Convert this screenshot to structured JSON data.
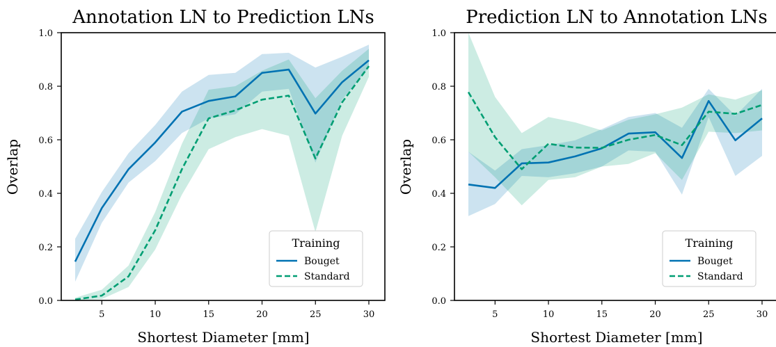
{
  "chart_data": [
    {
      "type": "line",
      "title": "Annotation LN to Prediction LNs",
      "xlabel": "Shortest Diameter [mm]",
      "ylabel": "Overlap",
      "xlim": [
        1.2,
        31.5
      ],
      "ylim": [
        0.0,
        1.0
      ],
      "xticks": [
        5,
        10,
        15,
        20,
        25,
        30
      ],
      "yticks": [
        0.0,
        0.2,
        0.4,
        0.6,
        0.8,
        1.0
      ],
      "x": [
        2.5,
        5,
        7.5,
        10,
        12.5,
        15,
        17.5,
        20,
        22.5,
        25,
        27.5,
        30
      ],
      "series": [
        {
          "name": "Bouget",
          "color": "#0072b2",
          "dash": "solid",
          "values": [
            0.145,
            0.345,
            0.49,
            0.59,
            0.705,
            0.745,
            0.762,
            0.85,
            0.862,
            0.698,
            0.815,
            0.897
          ],
          "band_low": [
            0.07,
            0.29,
            0.44,
            0.52,
            0.625,
            0.68,
            0.695,
            0.78,
            0.79,
            0.515,
            0.75,
            0.87
          ],
          "band_high": [
            0.23,
            0.405,
            0.55,
            0.655,
            0.78,
            0.842,
            0.85,
            0.92,
            0.925,
            0.87,
            0.91,
            0.955
          ]
        },
        {
          "name": "Standard",
          "color": "#009e73",
          "dash": "dashed",
          "values": [
            0.003,
            0.018,
            0.09,
            0.262,
            0.49,
            0.68,
            0.71,
            0.75,
            0.765,
            0.53,
            0.74,
            0.875
          ],
          "band_low": [
            0.0,
            0.005,
            0.05,
            0.19,
            0.395,
            0.565,
            0.61,
            0.64,
            0.615,
            0.255,
            0.615,
            0.835
          ],
          "band_high": [
            0.01,
            0.04,
            0.13,
            0.33,
            0.585,
            0.787,
            0.8,
            0.858,
            0.9,
            0.755,
            0.858,
            0.94
          ]
        }
      ],
      "legend": {
        "title": "Training",
        "position": "lower-right"
      },
      "grid": false
    },
    {
      "type": "line",
      "title": "Prediction LN to Annotation LNs",
      "xlabel": "Shortest Diameter [mm]",
      "ylabel": "Overlap",
      "xlim": [
        1.2,
        31.5
      ],
      "ylim": [
        0.0,
        1.0
      ],
      "xticks": [
        5,
        10,
        15,
        20,
        25,
        30
      ],
      "yticks": [
        0.0,
        0.2,
        0.4,
        0.6,
        0.8,
        1.0
      ],
      "x": [
        2.5,
        5,
        7.5,
        10,
        12.5,
        15,
        17.5,
        20,
        22.5,
        25,
        27.5,
        30
      ],
      "series": [
        {
          "name": "Bouget",
          "color": "#0072b2",
          "dash": "solid",
          "values": [
            0.433,
            0.42,
            0.512,
            0.515,
            0.538,
            0.568,
            0.623,
            0.628,
            0.532,
            0.745,
            0.598,
            0.68
          ],
          "band_low": [
            0.315,
            0.36,
            0.465,
            0.46,
            0.475,
            0.5,
            0.56,
            0.555,
            0.395,
            0.685,
            0.465,
            0.54
          ],
          "band_high": [
            0.555,
            0.485,
            0.565,
            0.58,
            0.598,
            0.64,
            0.685,
            0.7,
            0.645,
            0.79,
            0.69,
            0.79
          ]
        },
        {
          "name": "Standard",
          "color": "#009e73",
          "dash": "dashed",
          "values": [
            0.778,
            0.61,
            0.49,
            0.585,
            0.571,
            0.57,
            0.6,
            0.618,
            0.58,
            0.705,
            0.697,
            0.73
          ],
          "band_low": [
            0.555,
            0.46,
            0.355,
            0.45,
            0.46,
            0.5,
            0.51,
            0.55,
            0.45,
            0.63,
            0.625,
            0.635
          ],
          "band_high": [
            1.0,
            0.76,
            0.625,
            0.685,
            0.665,
            0.635,
            0.675,
            0.695,
            0.72,
            0.77,
            0.75,
            0.785
          ]
        }
      ],
      "legend": {
        "title": "Training",
        "position": "lower-right"
      },
      "grid": false
    }
  ]
}
